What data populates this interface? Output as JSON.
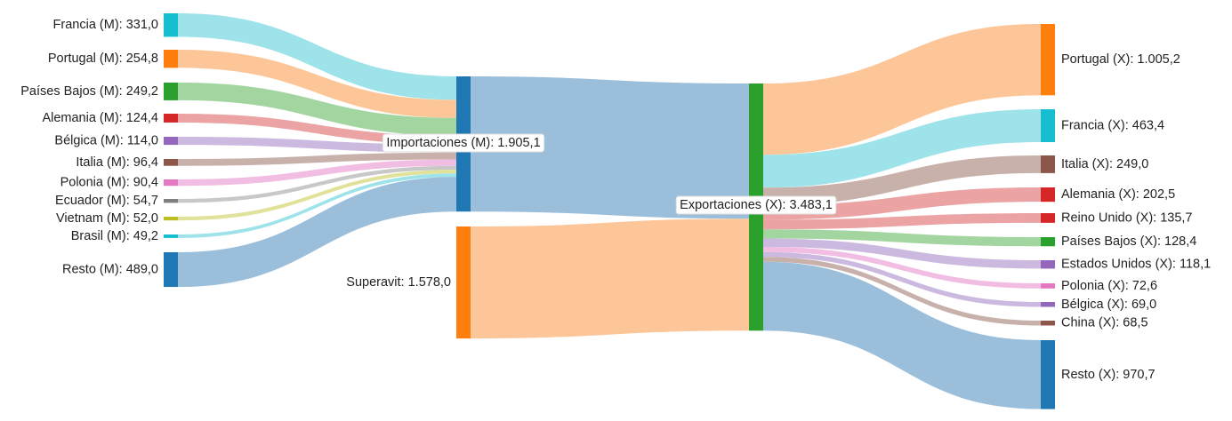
{
  "chart_data": {
    "type": "sankey",
    "title": "",
    "units": "",
    "nodes": [
      {
        "id": "FR_M",
        "label": "Francia (M): 331,0",
        "value": 331.0,
        "color": "#17becf"
      },
      {
        "id": "PT_M",
        "label": "Portugal (M): 254,8",
        "value": 254.8,
        "color": "#ff7f0e"
      },
      {
        "id": "NL_M",
        "label": "Países Bajos (M): 249,2",
        "value": 249.2,
        "color": "#2ca02c"
      },
      {
        "id": "DE_M",
        "label": "Alemania (M): 124,4",
        "value": 124.4,
        "color": "#d62728"
      },
      {
        "id": "BE_M",
        "label": "Bélgica (M): 114,0",
        "value": 114.0,
        "color": "#9467bd"
      },
      {
        "id": "IT_M",
        "label": "Italia (M): 96,4",
        "value": 96.4,
        "color": "#8c564b"
      },
      {
        "id": "PL_M",
        "label": "Polonia (M): 90,4",
        "value": 90.4,
        "color": "#e377c2"
      },
      {
        "id": "EC_M",
        "label": "Ecuador (M): 54,7",
        "value": 54.7,
        "color": "#7f7f7f"
      },
      {
        "id": "VN_M",
        "label": "Vietnam (M): 52,0",
        "value": 52.0,
        "color": "#bcbd22"
      },
      {
        "id": "BR_M",
        "label": "Brasil (M): 49,2",
        "value": 49.2,
        "color": "#17becf"
      },
      {
        "id": "RS_M",
        "label": "Resto (M): 489,0",
        "value": 489.0,
        "color": "#1f77b4"
      },
      {
        "id": "IMP",
        "label": "Importaciones (M): 1.905,1",
        "value": 1905.1,
        "color": "#1f77b4"
      },
      {
        "id": "SUP",
        "label": "Superavit: 1.578,0",
        "value": 1578.0,
        "color": "#ff7f0e"
      },
      {
        "id": "EXP",
        "label": "Exportaciones (X): 3.483,1",
        "value": 3483.1,
        "color": "#2ca02c"
      },
      {
        "id": "PT_X",
        "label": "Portugal (X): 1.005,2",
        "value": 1005.2,
        "color": "#ff7f0e"
      },
      {
        "id": "FR_X",
        "label": "Francia (X): 463,4",
        "value": 463.4,
        "color": "#17becf"
      },
      {
        "id": "IT_X",
        "label": "Italia (X): 249,0",
        "value": 249.0,
        "color": "#8c564b"
      },
      {
        "id": "DE_X",
        "label": "Alemania (X): 202,5",
        "value": 202.5,
        "color": "#d62728"
      },
      {
        "id": "UK_X",
        "label": "Reino Unido (X): 135,7",
        "value": 135.7,
        "color": "#d62728"
      },
      {
        "id": "NL_X",
        "label": "Países Bajos (X): 128,4",
        "value": 128.4,
        "color": "#2ca02c"
      },
      {
        "id": "US_X",
        "label": "Estados Unidos (X): 118,1",
        "value": 118.1,
        "color": "#9467bd"
      },
      {
        "id": "PL_X",
        "label": "Polonia (X): 72,6",
        "value": 72.6,
        "color": "#e377c2"
      },
      {
        "id": "BE_X",
        "label": "Bélgica (X): 69,0",
        "value": 69.0,
        "color": "#9467bd"
      },
      {
        "id": "CN_X",
        "label": "China (X): 68,5",
        "value": 68.5,
        "color": "#8c564b"
      },
      {
        "id": "RS_X",
        "label": "Resto (X): 970,7",
        "value": 970.7,
        "color": "#1f77b4"
      }
    ],
    "links": [
      {
        "source": "FR_M",
        "target": "IMP",
        "value": 331.0,
        "color": "#9ee3ea"
      },
      {
        "source": "PT_M",
        "target": "IMP",
        "value": 254.8,
        "color": "#fdc699"
      },
      {
        "source": "NL_M",
        "target": "IMP",
        "value": 249.2,
        "color": "#a2d5a0"
      },
      {
        "source": "DE_M",
        "target": "IMP",
        "value": 124.4,
        "color": "#eca3a3"
      },
      {
        "source": "BE_M",
        "target": "IMP",
        "value": 114.0,
        "color": "#cbb9e0"
      },
      {
        "source": "IT_M",
        "target": "IMP",
        "value": 96.4,
        "color": "#c9b1ab"
      },
      {
        "source": "PL_M",
        "target": "IMP",
        "value": 90.4,
        "color": "#f2bde3"
      },
      {
        "source": "EC_M",
        "target": "IMP",
        "value": 54.7,
        "color": "#c8c8c8"
      },
      {
        "source": "VN_M",
        "target": "IMP",
        "value": 52.0,
        "color": "#e1e29a"
      },
      {
        "source": "BR_M",
        "target": "IMP",
        "value": 49.2,
        "color": "#9ee3ea"
      },
      {
        "source": "RS_M",
        "target": "IMP",
        "value": 489.0,
        "color": "#9bbfdb"
      },
      {
        "source": "IMP",
        "target": "EXP",
        "value": 1905.1,
        "color": "#9bbfdb"
      },
      {
        "source": "SUP",
        "target": "EXP",
        "value": 1578.0,
        "color": "#fdc699"
      },
      {
        "source": "EXP",
        "target": "PT_X",
        "value": 1005.2,
        "color": "#fdc699"
      },
      {
        "source": "EXP",
        "target": "FR_X",
        "value": 463.4,
        "color": "#9ee3ea"
      },
      {
        "source": "EXP",
        "target": "IT_X",
        "value": 249.0,
        "color": "#c9b1ab"
      },
      {
        "source": "EXP",
        "target": "DE_X",
        "value": 202.5,
        "color": "#eca3a3"
      },
      {
        "source": "EXP",
        "target": "UK_X",
        "value": 135.7,
        "color": "#eca3a3"
      },
      {
        "source": "EXP",
        "target": "NL_X",
        "value": 128.4,
        "color": "#a2d5a0"
      },
      {
        "source": "EXP",
        "target": "US_X",
        "value": 118.1,
        "color": "#cbb9e0"
      },
      {
        "source": "EXP",
        "target": "PL_X",
        "value": 72.6,
        "color": "#f2bde3"
      },
      {
        "source": "EXP",
        "target": "BE_X",
        "value": 69.0,
        "color": "#cbb9e0"
      },
      {
        "source": "EXP",
        "target": "CN_X",
        "value": 68.5,
        "color": "#c9b1ab"
      },
      {
        "source": "EXP",
        "target": "RS_X",
        "value": 970.7,
        "color": "#9bbfdb"
      }
    ]
  }
}
